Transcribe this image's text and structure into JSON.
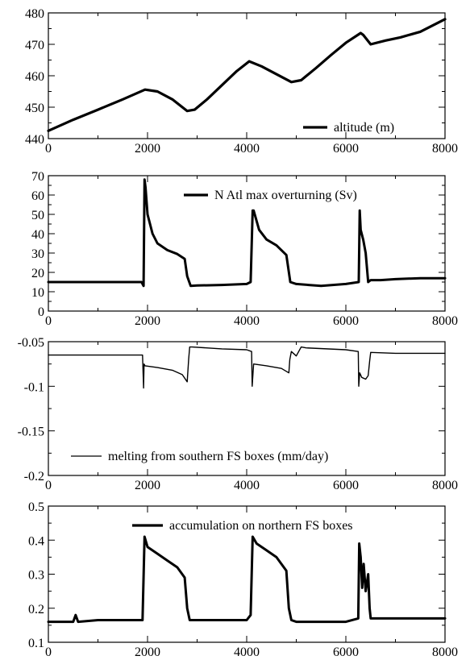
{
  "chart_data": [
    {
      "type": "line",
      "xlim": [
        0,
        8000
      ],
      "ylim": [
        440,
        480
      ],
      "xticks": [
        0,
        2000,
        4000,
        6000,
        8000
      ],
      "yticks": [
        440,
        450,
        460,
        470,
        480
      ],
      "legend": "altitude (m)",
      "legend_placement": "bottom-right",
      "grid": false,
      "series": [
        {
          "name": "altitude (m)",
          "x": [
            0,
            500,
            1000,
            1500,
            1950,
            2200,
            2500,
            2800,
            2950,
            3200,
            3500,
            3800,
            4050,
            4300,
            4600,
            4900,
            5100,
            5400,
            5700,
            6000,
            6300,
            6350,
            6500,
            6800,
            7100,
            7500,
            8000
          ],
          "y": [
            442.5,
            446,
            449.2,
            452.5,
            455.6,
            455,
            452.5,
            448.8,
            449.2,
            452.5,
            457,
            461.5,
            464.6,
            463,
            460.5,
            458,
            458.6,
            462.5,
            466.6,
            470.5,
            473.6,
            473,
            470,
            471.2,
            472.2,
            474,
            478
          ]
        }
      ]
    },
    {
      "type": "line",
      "xlim": [
        0,
        8000
      ],
      "ylim": [
        0,
        70
      ],
      "xticks": [
        0,
        2000,
        4000,
        6000,
        8000
      ],
      "yticks": [
        0,
        10,
        20,
        30,
        40,
        50,
        60,
        70
      ],
      "legend": "N Atl max overturning (Sv)",
      "legend_placement": "top-right",
      "grid": false,
      "series": [
        {
          "name": "N Atl max overturning (Sv)",
          "x": [
            0,
            1000,
            1880,
            1920,
            1940,
            1960,
            2000,
            2100,
            2200,
            2400,
            2600,
            2750,
            2800,
            2870,
            3000,
            3500,
            4000,
            4080,
            4120,
            4140,
            4250,
            4400,
            4600,
            4800,
            4880,
            5000,
            5500,
            6000,
            6260,
            6280,
            6300,
            6350,
            6400,
            6450,
            6500,
            6700,
            7000,
            7500,
            8000
          ],
          "y": [
            15,
            15,
            15,
            13,
            68,
            64,
            50,
            40,
            35,
            31.5,
            29.5,
            27,
            18,
            13,
            13.2,
            13.5,
            14,
            15,
            52,
            52,
            42,
            37,
            34,
            29,
            15,
            14,
            13,
            14,
            15,
            52,
            42,
            37,
            30,
            15,
            16,
            16,
            16.5,
            17,
            17
          ]
        }
      ]
    },
    {
      "type": "line",
      "xlim": [
        0,
        8000
      ],
      "ylim": [
        -0.2,
        -0.05
      ],
      "xticks": [
        0,
        2000,
        4000,
        6000,
        8000
      ],
      "yticks": [
        -0.2,
        -0.15,
        -0.1,
        -0.05
      ],
      "legend": "melting from southern FS boxes (mm/day)",
      "legend_placement": "bottom-center",
      "grid": false,
      "series": [
        {
          "name": "melting from southern FS boxes (mm/day)",
          "x": [
            0,
            1000,
            1900,
            1920,
            1930,
            1950,
            2200,
            2500,
            2700,
            2800,
            2830,
            2850,
            2900,
            3500,
            4000,
            4100,
            4110,
            4140,
            4400,
            4700,
            4850,
            4870,
            4900,
            5000,
            5100,
            5200,
            6000,
            6250,
            6260,
            6280,
            6320,
            6400,
            6450,
            6480,
            6500,
            7000,
            8000
          ],
          "y": [
            -0.065,
            -0.065,
            -0.065,
            -0.102,
            -0.075,
            -0.077,
            -0.079,
            -0.082,
            -0.087,
            -0.095,
            -0.07,
            -0.056,
            -0.056,
            -0.058,
            -0.059,
            -0.061,
            -0.1,
            -0.075,
            -0.077,
            -0.08,
            -0.085,
            -0.07,
            -0.061,
            -0.066,
            -0.056,
            -0.057,
            -0.059,
            -0.061,
            -0.1,
            -0.085,
            -0.09,
            -0.092,
            -0.088,
            -0.072,
            -0.062,
            -0.063,
            -0.063
          ]
        }
      ]
    },
    {
      "type": "line",
      "xlim": [
        0,
        8000
      ],
      "ylim": [
        0.1,
        0.5
      ],
      "xticks": [
        0,
        2000,
        4000,
        6000,
        8000
      ],
      "yticks": [
        0.1,
        0.2,
        0.3,
        0.4,
        0.5
      ],
      "legend": "accumulation on northern FS boxes",
      "legend_placement": "top-right",
      "grid": false,
      "series": [
        {
          "name": "accumulation on northern FS boxes",
          "x": [
            0,
            500,
            550,
            600,
            1000,
            1900,
            1940,
            2000,
            2200,
            2400,
            2600,
            2750,
            2800,
            2850,
            3000,
            3500,
            4000,
            4080,
            4120,
            4200,
            4400,
            4600,
            4800,
            4850,
            4900,
            5000,
            5500,
            6000,
            6250,
            6270,
            6300,
            6330,
            6360,
            6400,
            6450,
            6480,
            6500,
            7000,
            8000
          ],
          "y": [
            0.16,
            0.16,
            0.18,
            0.16,
            0.165,
            0.165,
            0.41,
            0.38,
            0.36,
            0.34,
            0.32,
            0.29,
            0.2,
            0.165,
            0.165,
            0.165,
            0.165,
            0.18,
            0.41,
            0.39,
            0.37,
            0.35,
            0.31,
            0.2,
            0.165,
            0.16,
            0.16,
            0.16,
            0.17,
            0.39,
            0.35,
            0.26,
            0.33,
            0.25,
            0.3,
            0.2,
            0.17,
            0.17,
            0.17
          ]
        }
      ]
    }
  ]
}
